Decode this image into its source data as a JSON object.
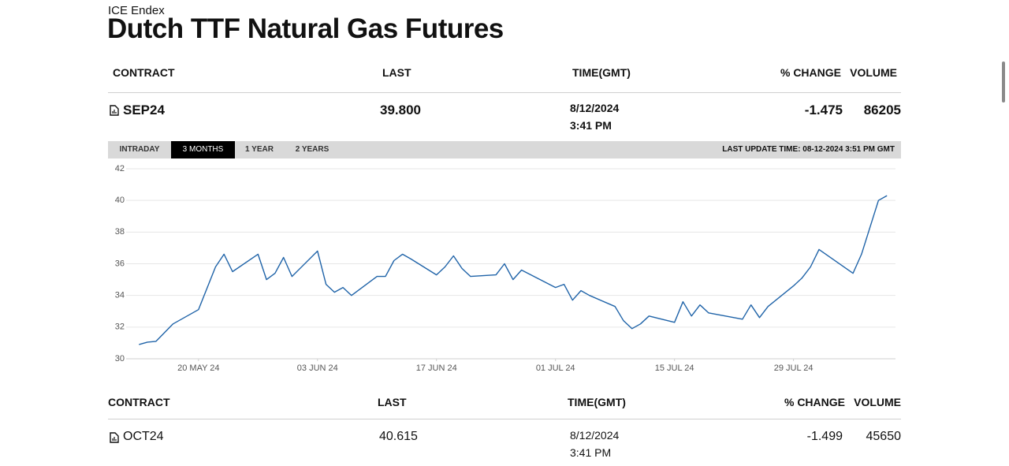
{
  "header": {
    "exchange": "ICE Endex",
    "title": "Dutch TTF Natural Gas Futures"
  },
  "sections": [
    {
      "columns": [
        "CONTRACT",
        "LAST",
        "TIME(GMT)",
        "% CHANGE",
        "VOLUME"
      ],
      "contract": "SEP24",
      "last": "39.800",
      "date": "8/12/2024",
      "time": "3:41 PM",
      "change": "-1.475",
      "volume": "86205"
    },
    {
      "columns": [
        "CONTRACT",
        "LAST",
        "TIME(GMT)",
        "% CHANGE",
        "VOLUME"
      ],
      "contract": "OCT24",
      "last": "40.615",
      "date": "8/12/2024",
      "time": "3:41 PM",
      "change": "-1.499",
      "volume": "45650"
    }
  ],
  "chart_panel": {
    "tabs": [
      "INTRADAY",
      "3 MONTHS",
      "1 YEAR",
      "2 YEARS"
    ],
    "active_tab": 1,
    "last_update": "LAST UPDATE TIME: 08-12-2024 3:51 PM GMT"
  },
  "chart_data": {
    "type": "line",
    "color": "#1f63a8",
    "grid": true,
    "x": [
      "2024-05-13",
      "2024-05-14",
      "2024-05-15",
      "2024-05-17",
      "2024-05-20",
      "2024-05-22",
      "2024-05-23",
      "2024-05-24",
      "2024-05-27",
      "2024-05-28",
      "2024-05-29",
      "2024-05-30",
      "2024-05-31",
      "2024-06-03",
      "2024-06-04",
      "2024-06-05",
      "2024-06-06",
      "2024-06-07",
      "2024-06-10",
      "2024-06-11",
      "2024-06-12",
      "2024-06-13",
      "2024-06-14",
      "2024-06-17",
      "2024-06-18",
      "2024-06-19",
      "2024-06-20",
      "2024-06-21",
      "2024-06-24",
      "2024-06-25",
      "2024-06-26",
      "2024-06-27",
      "2024-07-01",
      "2024-07-02",
      "2024-07-03",
      "2024-07-04",
      "2024-07-05",
      "2024-07-08",
      "2024-07-09",
      "2024-07-10",
      "2024-07-11",
      "2024-07-12",
      "2024-07-15",
      "2024-07-16",
      "2024-07-17",
      "2024-07-18",
      "2024-07-19",
      "2024-07-22",
      "2024-07-23",
      "2024-07-24",
      "2024-07-25",
      "2024-07-26",
      "2024-07-29",
      "2024-07-30",
      "2024-07-31",
      "2024-08-01",
      "2024-08-05",
      "2024-08-06",
      "2024-08-08",
      "2024-08-09"
    ],
    "values": [
      30.9,
      31.05,
      31.1,
      32.2,
      33.1,
      35.8,
      36.6,
      35.5,
      36.6,
      35.0,
      35.4,
      36.4,
      35.2,
      36.8,
      34.7,
      34.2,
      34.5,
      34.0,
      35.2,
      35.2,
      36.2,
      36.6,
      36.3,
      35.3,
      35.8,
      36.5,
      35.7,
      35.2,
      35.3,
      36.0,
      35.0,
      35.6,
      34.5,
      34.7,
      33.7,
      34.3,
      34.0,
      33.3,
      32.4,
      31.9,
      32.2,
      32.7,
      32.3,
      33.6,
      32.7,
      33.4,
      32.9,
      32.6,
      32.5,
      33.4,
      32.6,
      33.3,
      34.6,
      35.1,
      35.8,
      36.9,
      35.4,
      36.6,
      40.0,
      40.3
    ],
    "xlim": [
      "2024-05-10",
      "2024-08-10"
    ],
    "xticks": [
      {
        "value": "2024-05-20",
        "label": "20 MAY 24"
      },
      {
        "value": "2024-06-03",
        "label": "03 JUN 24"
      },
      {
        "value": "2024-06-17",
        "label": "17 JUN 24"
      },
      {
        "value": "2024-07-01",
        "label": "01 JUL 24"
      },
      {
        "value": "2024-07-15",
        "label": "15 JUL 24"
      },
      {
        "value": "2024-07-29",
        "label": "29 JUL 24"
      }
    ],
    "ylim": [
      30,
      42
    ],
    "yticks": [
      30,
      32,
      34,
      36,
      38,
      40,
      42
    ]
  }
}
